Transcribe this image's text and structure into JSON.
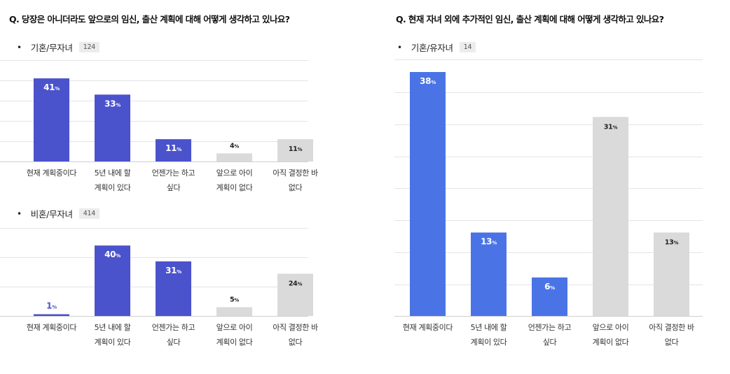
{
  "colors": {
    "highlight": "#4a52cc",
    "highlight_right": "#4a74e6",
    "neutral": "#dadada",
    "label_dark": "#222222",
    "label_on_bar": "#ffffff"
  },
  "left": {
    "question": "Q. 당장은 아니더라도 앞으로의 임신, 출산 계획에 대해 어떻게 생각하고 있나요?"
  },
  "right": {
    "question": "Q. 현재 자녀 외에 추가적인 임신, 출산 계획에 대해 어떻게 생각하고 있나요?"
  },
  "chart_data": [
    {
      "type": "bar",
      "group": "기혼/무자녀",
      "count": "124",
      "categories": [
        "현재 계획중이다",
        "5년 내에 할 계획이 있다",
        "언젠가는 하고 싶다",
        "앞으로 아이 계획이 없다",
        "아직 결정한 바 없다"
      ],
      "category_lines": [
        [
          "현재 계획중이다"
        ],
        [
          "5년 내에 할",
          "계획이 있다"
        ],
        [
          "언젠가는 하고",
          "싶다"
        ],
        [
          "앞으로 아이",
          "계획이 없다"
        ],
        [
          "아직 결정한 바",
          "없다"
        ]
      ],
      "values": [
        41,
        33,
        11,
        4,
        11
      ],
      "labels": [
        "41",
        "33",
        "11",
        "4",
        "11"
      ],
      "unit": "%",
      "highlight": [
        true,
        true,
        true,
        false,
        false
      ],
      "ylim": [
        0,
        50
      ],
      "grid": true
    },
    {
      "type": "bar",
      "group": "비혼/무자녀",
      "count": "414",
      "categories": [
        "현재 계획중이다",
        "5년 내에 할 계획이 있다",
        "언젠가는 하고 싶다",
        "앞으로 아이 계획이 없다",
        "아직 결정한 바 없다"
      ],
      "category_lines": [
        [
          "현재 계획중이다"
        ],
        [
          "5년 내에 할",
          "계획이 있다"
        ],
        [
          "언젠가는 하고",
          "싶다"
        ],
        [
          "앞으로 아이",
          "계획이 없다"
        ],
        [
          "아직 결정한 바",
          "없다"
        ]
      ],
      "values": [
        1,
        40,
        31,
        5,
        24
      ],
      "labels": [
        "1",
        "40",
        "31",
        "5",
        "24"
      ],
      "unit": "%",
      "highlight": [
        true,
        true,
        true,
        false,
        false
      ],
      "ylim": [
        0,
        50
      ],
      "grid": true
    },
    {
      "type": "bar",
      "group": "기혼/유자녀",
      "count": "14",
      "categories": [
        "현재 계획중이다",
        "5년 내에 할 계획이 있다",
        "언젠가는 하고 싶다",
        "앞으로 아이 계획이 없다",
        "아직 결정한 바 없다"
      ],
      "category_lines": [
        [
          "현재 계획중이다"
        ],
        [
          "5년 내에 할",
          "계획이 있다"
        ],
        [
          "언젠가는 하고",
          "싶다"
        ],
        [
          "앞으로 아이",
          "계획이 없다"
        ],
        [
          "아직 결정한 바",
          "없다"
        ]
      ],
      "values": [
        38,
        13,
        6,
        31,
        13
      ],
      "labels": [
        "38",
        "13",
        "6",
        "31",
        "13"
      ],
      "unit": "%",
      "highlight": [
        true,
        true,
        true,
        false,
        false
      ],
      "ylim": [
        0,
        38
      ],
      "grid": true
    }
  ]
}
